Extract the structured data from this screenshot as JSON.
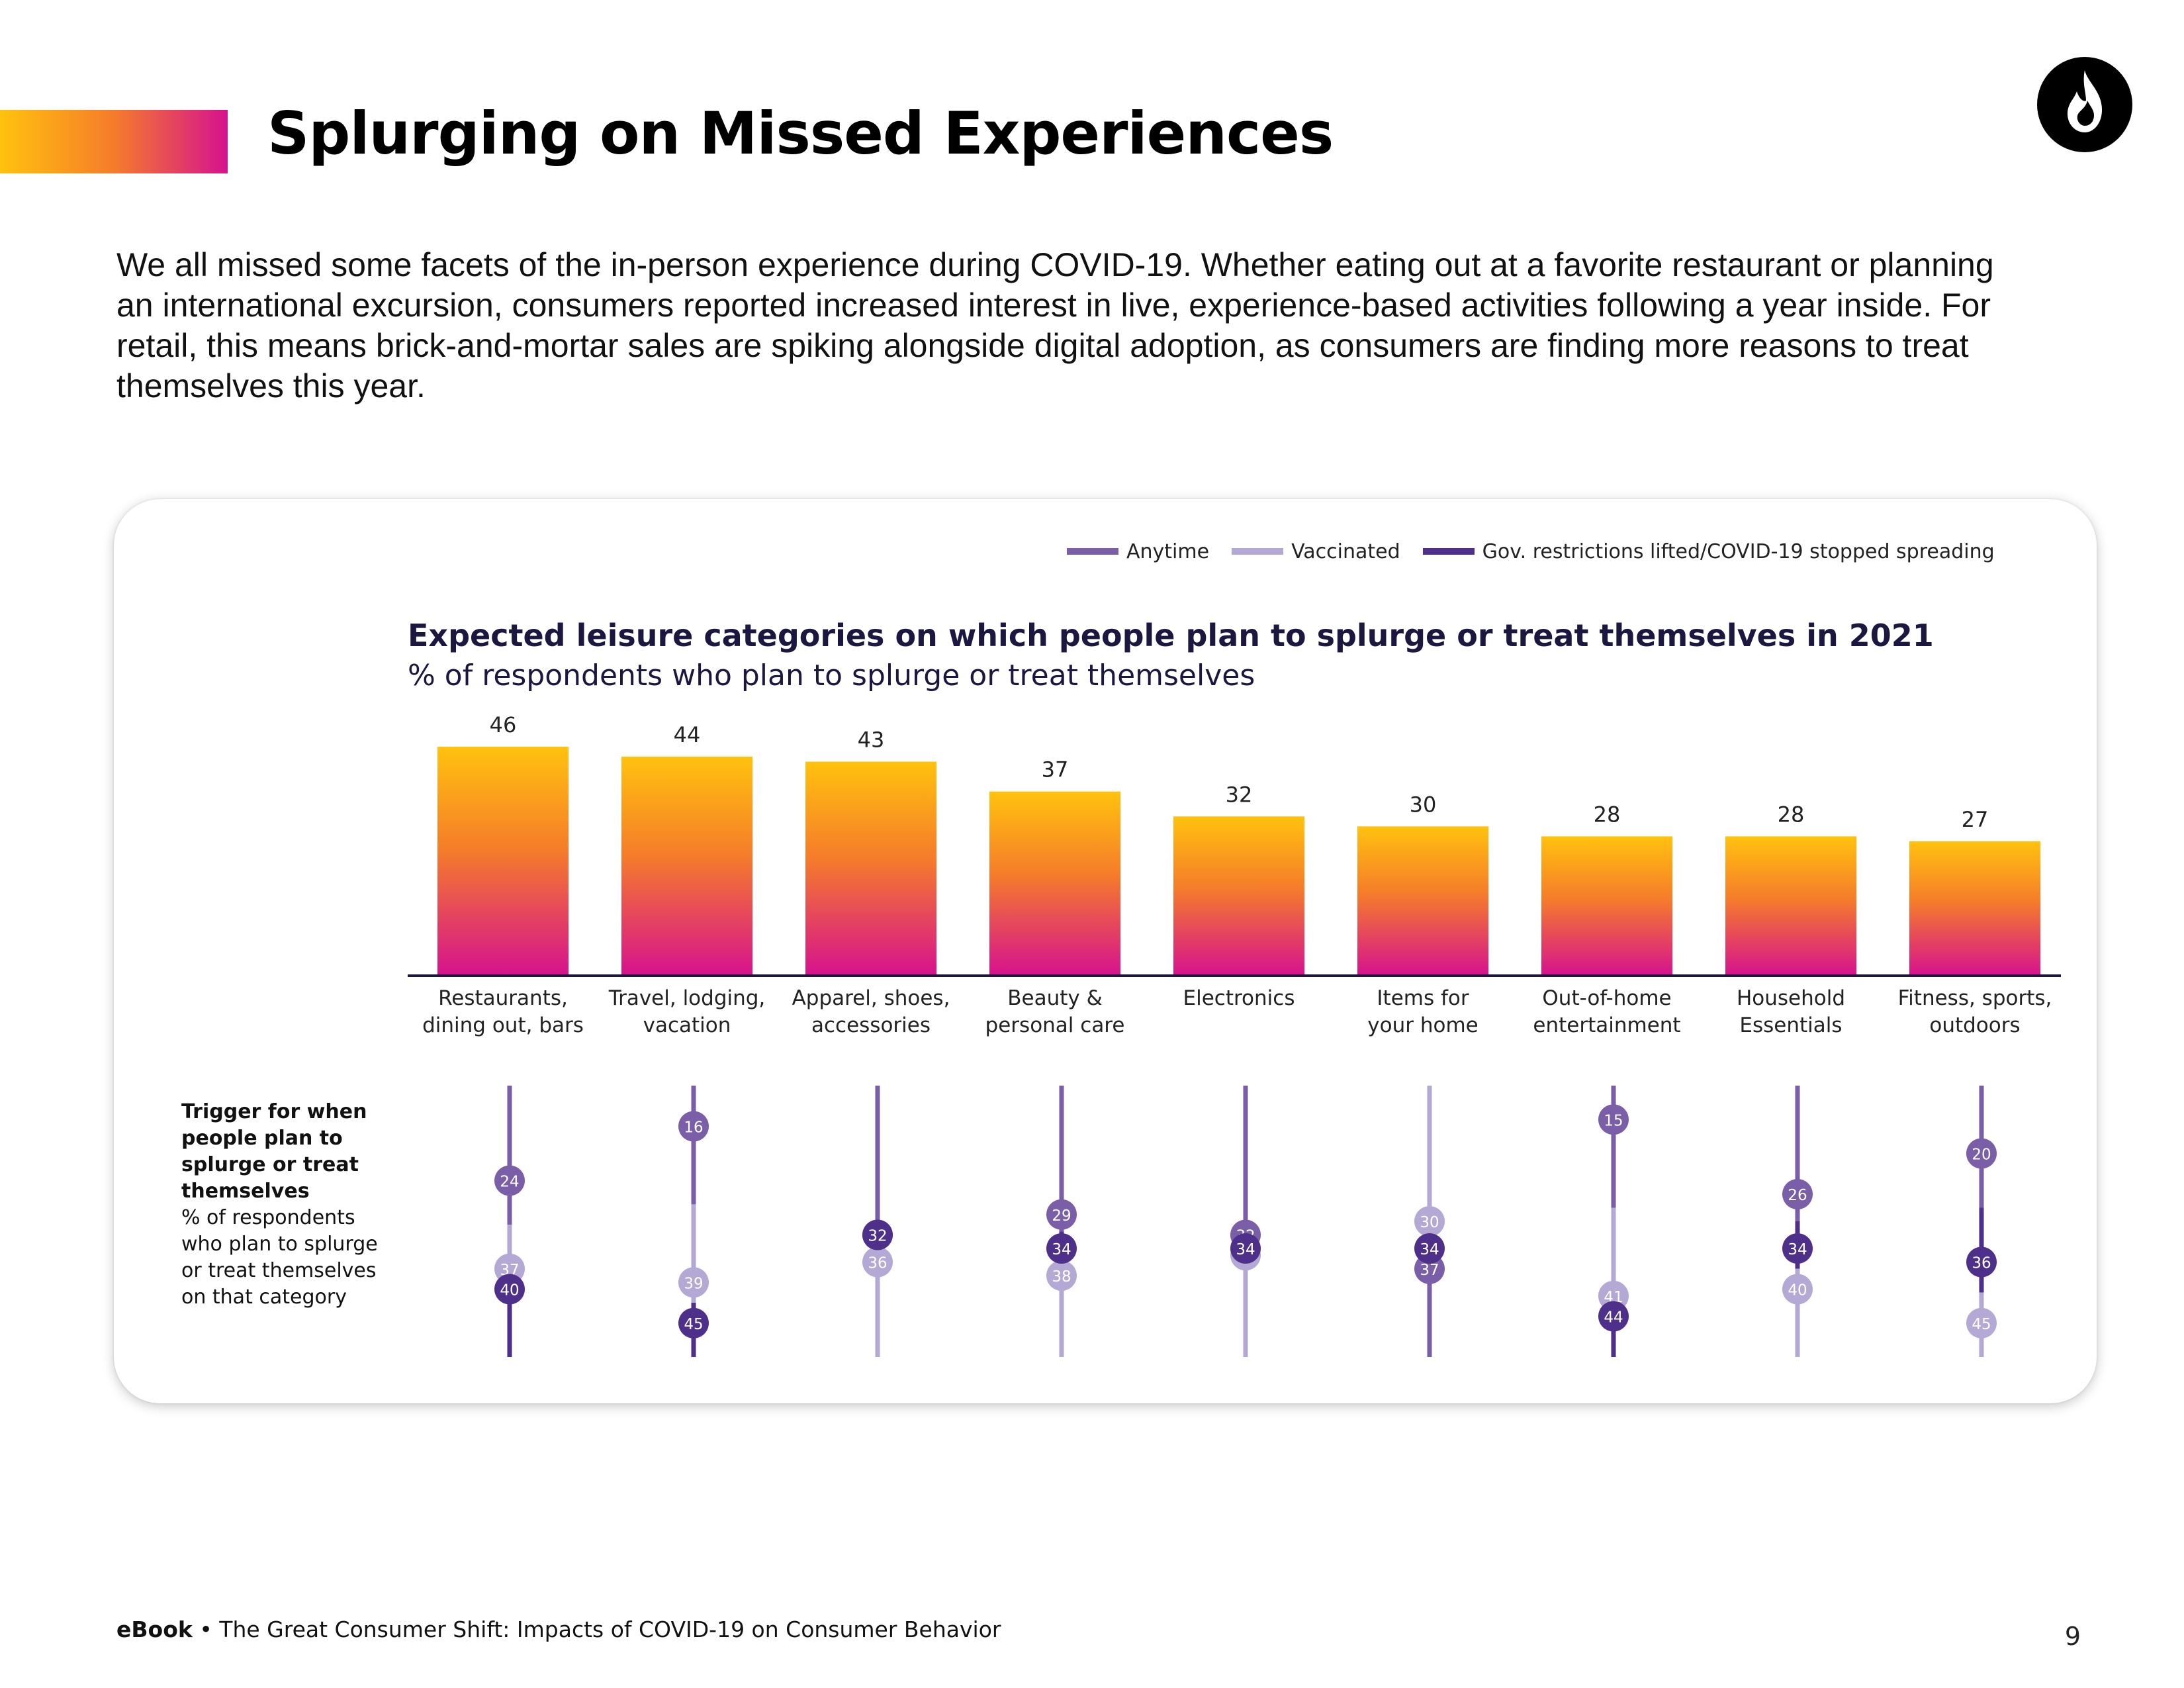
{
  "header": {
    "title": "Splurging on Missed Experiences",
    "logo_icon": "flame-icon"
  },
  "intro": {
    "text": "We all missed some facets of the in-person experience during COVID-19. Whether eating out at a favorite restaurant or planning an international excursion, consumers reported increased interest in live, experience-based activities following a year inside. For retail, this means brick-and-mortar sales are spiking alongside digital adoption, as consumers are finding more reasons to treat themselves this year."
  },
  "legend": {
    "items": [
      {
        "label": "Anytime",
        "color": "#7a5fa8"
      },
      {
        "label": "Vaccinated",
        "color": "#b4a8d4"
      },
      {
        "label": "Gov. restrictions lifted/COVID-19 stopped spreading",
        "color": "#4e2f8a"
      }
    ]
  },
  "trigger_label": {
    "bold_lines": [
      "Trigger for when",
      "people plan to",
      "splurge or treat",
      "themselves"
    ],
    "lines": [
      "% of respondents",
      "who plan to splurge",
      "or treat themselves",
      "on that category"
    ]
  },
  "colors": {
    "bar_top": "#ffc20e",
    "bar_mid": "#f57c2a",
    "bar_bottom": "#d6128e",
    "axis": "#1b1740"
  },
  "chart_data": [
    {
      "type": "bar",
      "title": "Expected leisure categories on which people plan to splurge or treat themselves in 2021",
      "subtitle": "% of respondents who plan to splurge or treat themselves",
      "categories": [
        [
          "Restaurants,",
          "dining out, bars"
        ],
        [
          "Travel, lodging,",
          "vacation"
        ],
        [
          "Apparel, shoes,",
          "accessories"
        ],
        [
          "Beauty &",
          "personal care"
        ],
        [
          "Electronics"
        ],
        [
          "Items for",
          "your home"
        ],
        [
          "Out-of-home",
          "entertainment"
        ],
        [
          "Household",
          "Essentials"
        ],
        [
          "Fitness, sports,",
          "outdoors"
        ]
      ],
      "values": [
        46,
        44,
        43,
        37,
        32,
        30,
        28,
        28,
        27
      ],
      "ylim": [
        0,
        50
      ]
    },
    {
      "type": "scatter",
      "categories": [
        "Restaurants, dining out, bars",
        "Travel, lodging, vacation",
        "Apparel, shoes, accessories",
        "Beauty & personal care",
        "Electronics",
        "Items for your home",
        "Out-of-home entertainment",
        "Household Essentials",
        "Fitness, sports, outdoors"
      ],
      "series": [
        {
          "name": "Anytime",
          "values": [
            24,
            16,
            32,
            29,
            32,
            37,
            15,
            26,
            20
          ]
        },
        {
          "name": "Vaccinated",
          "values": [
            37,
            39,
            36,
            38,
            35,
            30,
            41,
            40,
            45
          ]
        },
        {
          "name": "Gov. restrictions lifted/COVID-19 stopped spreading",
          "values": [
            40,
            45,
            32,
            34,
            34,
            34,
            44,
            34,
            36
          ]
        }
      ],
      "ylim": [
        10,
        50
      ]
    }
  ],
  "footer": {
    "bold": "eBook",
    "separator": "•",
    "text": "The Great Consumer Shift: Impacts of COVID-19 on Consumer Behavior",
    "page_number": "9"
  }
}
